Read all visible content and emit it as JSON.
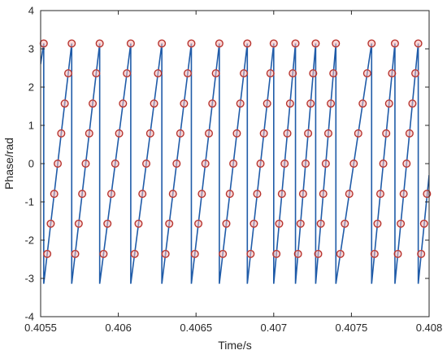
{
  "chart_data": {
    "type": "line",
    "xlabel": "Time/s",
    "ylabel": "Phase/rad",
    "xlim": [
      0.4055,
      0.408
    ],
    "ylim": [
      -4,
      4
    ],
    "x_ticks": [
      0.4055,
      0.406,
      0.4065,
      0.407,
      0.4075,
      0.408
    ],
    "x_tick_labels": [
      "0.4055",
      "0.406",
      "0.4065",
      "0.407",
      "0.4075",
      "0.408"
    ],
    "y_ticks": [
      -4,
      -3,
      -2,
      -1,
      0,
      1,
      2,
      3,
      4
    ],
    "y_tick_labels": [
      "-4",
      "-3",
      "-2",
      "-1",
      "0",
      "1",
      "2",
      "3",
      "4"
    ],
    "grid": false,
    "wrap_times": [
      0.40552,
      0.4057,
      0.40588,
      0.40608,
      0.40628,
      0.40647,
      0.40665,
      0.40683,
      0.407,
      0.40714,
      0.40727,
      0.4074,
      0.40763,
      0.40778,
      0.40793
    ],
    "colors": {
      "line": "#1f5ba8",
      "marker": "#b5302a",
      "marker_halo": "#f4b6b6",
      "axis": "#262626"
    },
    "series": [
      {
        "style": "line",
        "x": [
          0.4055,
          0.40552,
          0.40552,
          0.4057,
          0.4057,
          0.40588,
          0.40588,
          0.40608,
          0.40608,
          0.40628,
          0.40628,
          0.40647,
          0.40647,
          0.40665,
          0.40665,
          0.40683,
          0.40683,
          0.407,
          0.407,
          0.40714,
          0.40714,
          0.40727,
          0.40727,
          0.4074,
          0.4074,
          0.40763,
          0.40763,
          0.40778,
          0.40778,
          0.40793,
          0.40793,
          0.408
        ],
        "y": [
          2.6,
          3.14,
          -3.14,
          3.14,
          -3.14,
          3.14,
          -3.14,
          3.14,
          -3.14,
          3.14,
          -3.14,
          3.14,
          -3.14,
          3.14,
          -3.14,
          3.14,
          -3.14,
          3.14,
          -3.14,
          3.14,
          -3.14,
          3.14,
          -3.14,
          3.14,
          -3.14,
          3.14,
          -3.14,
          3.14,
          -3.14,
          3.14,
          -3.14,
          -0.3
        ]
      },
      {
        "style": "markers",
        "phase_levels": [
          3.14,
          2.36,
          1.57,
          0.79,
          0.0,
          -0.79,
          -1.57,
          -2.36
        ]
      }
    ]
  }
}
